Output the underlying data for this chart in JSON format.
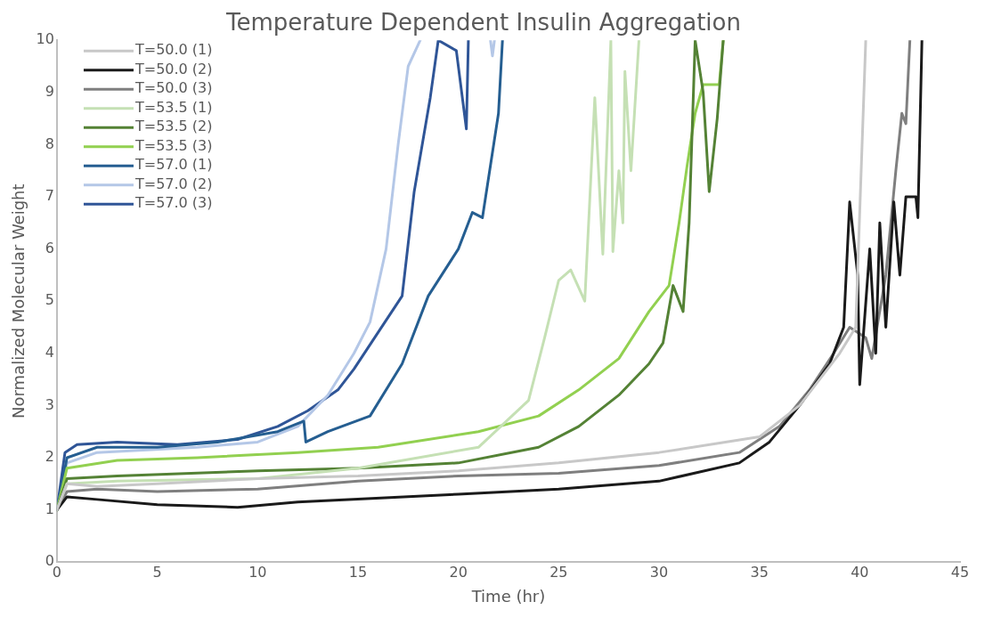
{
  "chart_data": {
    "type": "line",
    "title": "Temperature Dependent Insulin Aggregation",
    "xlabel": "Time (hr)",
    "ylabel": "Normalized Molecular Weight",
    "xlim": [
      0,
      45
    ],
    "xticks": [
      0,
      5,
      10,
      15,
      20,
      25,
      30,
      35,
      40,
      45
    ],
    "ylim": [
      0,
      10
    ],
    "yticks": [
      0,
      1,
      2,
      3,
      4,
      5,
      6,
      7,
      8,
      9,
      10
    ],
    "grid": false,
    "legend": "top left",
    "marker": "none",
    "line_style": "solid",
    "series": [
      {
        "name": "T=50.0 (1)",
        "color": "#c8c8c8",
        "x": [
          0,
          0.5,
          2,
          5,
          10,
          15,
          20,
          25,
          30,
          35,
          37,
          38,
          39,
          39.8,
          40.3
        ],
        "values": [
          1,
          1.5,
          1.45,
          1.5,
          1.6,
          1.65,
          1.75,
          1.9,
          2.1,
          2.4,
          3.0,
          3.5,
          4.0,
          4.5,
          10
        ]
      },
      {
        "name": "T=50.0 (2)",
        "color": "#1a1a1a",
        "x": [
          0,
          0.5,
          2,
          5,
          9,
          12,
          20,
          25,
          30,
          34,
          35.5,
          37,
          38.5,
          39.2,
          39.5,
          39.9,
          40.0,
          40.5,
          40.8,
          41,
          41.3,
          41.7,
          42,
          42.3,
          42.8,
          42.9,
          43.1
        ],
        "values": [
          1,
          1.25,
          1.2,
          1.1,
          1.05,
          1.15,
          1.3,
          1.4,
          1.55,
          1.9,
          2.3,
          3.0,
          3.8,
          4.5,
          6.9,
          5.5,
          3.4,
          6.0,
          4.0,
          6.5,
          4.5,
          6.9,
          5.5,
          7.0,
          7.0,
          6.6,
          10
        ]
      },
      {
        "name": "T=50.0 (3)",
        "color": "#7f7f7f",
        "x": [
          0,
          0.5,
          2,
          5,
          10,
          15,
          20,
          25,
          30,
          34,
          36,
          37.5,
          38.7,
          39.5,
          40.3,
          40.6,
          41.3,
          41.8,
          42.1,
          42.3,
          42.5
        ],
        "values": [
          1,
          1.35,
          1.4,
          1.35,
          1.4,
          1.55,
          1.65,
          1.7,
          1.85,
          2.1,
          2.6,
          3.3,
          4.0,
          4.5,
          4.3,
          3.9,
          5.5,
          7.5,
          8.6,
          8.4,
          10
        ]
      },
      {
        "name": "T=53.5 (1)",
        "color": "#c5e0b4",
        "x": [
          0,
          0.5,
          3,
          10,
          15,
          21,
          23.5,
          24.3,
          25,
          25.6,
          26.3,
          26.8,
          27.2,
          27.6,
          27.7,
          28.0,
          28.2,
          28.3,
          28.6,
          29.0
        ],
        "values": [
          1,
          1.5,
          1.55,
          1.6,
          1.8,
          2.2,
          3.1,
          4.3,
          5.4,
          5.6,
          5.0,
          8.9,
          5.9,
          10,
          5.95,
          7.5,
          6.5,
          9.4,
          7.5,
          10
        ]
      },
      {
        "name": "T=53.5 (2)",
        "color": "#548235",
        "x": [
          0,
          0.5,
          3,
          10,
          15,
          20,
          24,
          26,
          28,
          29.5,
          30.2,
          30.7,
          31.2,
          31.5,
          31.8,
          32.2,
          32.5,
          32.9,
          33.2
        ],
        "values": [
          1,
          1.6,
          1.65,
          1.75,
          1.8,
          1.9,
          2.2,
          2.6,
          3.2,
          3.8,
          4.2,
          5.3,
          4.8,
          6.5,
          10,
          9.0,
          7.1,
          8.5,
          10
        ]
      },
      {
        "name": "T=53.5 (3)",
        "color": "#92d050",
        "x": [
          0,
          0.5,
          3,
          7,
          12,
          16,
          21,
          24,
          26,
          28,
          29.5,
          30.5,
          31.0,
          31.4,
          31.8,
          32.2,
          33.0,
          33.2
        ],
        "values": [
          1,
          1.8,
          1.95,
          2.0,
          2.1,
          2.2,
          2.5,
          2.8,
          3.3,
          3.9,
          4.8,
          5.3,
          6.5,
          7.6,
          8.6,
          9.15,
          9.15,
          10
        ]
      },
      {
        "name": "T=57.0 (1)",
        "color": "#255e91",
        "x": [
          0,
          0.5,
          2,
          5,
          8,
          11,
          12.3,
          12.4,
          13.5,
          15.6,
          17.2,
          18.5,
          20,
          20.7,
          21.2,
          22.0,
          22.2
        ],
        "values": [
          1,
          2.0,
          2.2,
          2.2,
          2.3,
          2.5,
          2.7,
          2.3,
          2.5,
          2.8,
          3.8,
          5.1,
          6.0,
          6.7,
          6.6,
          8.6,
          10
        ]
      },
      {
        "name": "T=57.0 (2)",
        "color": "#b4c7e7",
        "x": [
          0,
          0.5,
          2,
          7,
          10,
          12,
          13.5,
          14.8,
          15.6,
          16.4,
          17.0,
          17.5,
          18.1,
          18.2,
          21.6,
          21.7,
          21.8
        ],
        "values": [
          1,
          1.9,
          2.1,
          2.2,
          2.3,
          2.6,
          3.2,
          4.0,
          4.6,
          6.0,
          8.0,
          9.5,
          10,
          null,
          10,
          9.7,
          10
        ]
      },
      {
        "name": "T=57.0 (3)",
        "color": "#2f5597",
        "x": [
          0,
          0.4,
          1,
          3,
          6,
          9,
          11,
          12.5,
          14,
          14.8,
          16,
          17.2,
          17.8,
          18.6,
          19.0,
          19.9,
          20.4,
          20.5
        ],
        "values": [
          1,
          2.1,
          2.25,
          2.3,
          2.25,
          2.35,
          2.6,
          2.9,
          3.3,
          3.7,
          4.4,
          5.1,
          7.1,
          8.9,
          10,
          9.8,
          8.3,
          10
        ]
      }
    ]
  }
}
